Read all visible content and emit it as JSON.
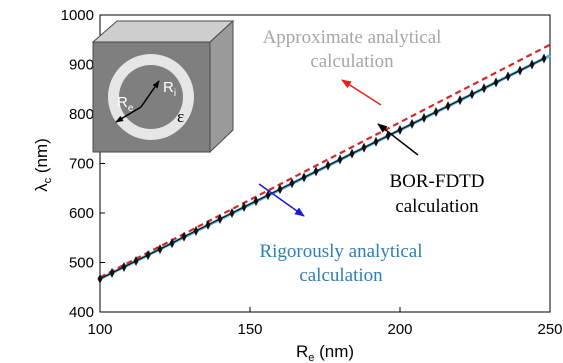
{
  "chart_data": {
    "type": "line",
    "xlabel": "R",
    "xlabel_sub": "e",
    "xlabel_unit": " (nm)",
    "ylabel": "λ",
    "ylabel_sub": "c",
    "ylabel_unit": " (nm)",
    "xlim": [
      100,
      250
    ],
    "ylim": [
      400,
      1000
    ],
    "xticks": [
      "100",
      "150",
      "200",
      "250"
    ],
    "yticks": [
      "400",
      "500",
      "600",
      "700",
      "800",
      "900",
      "1000"
    ],
    "series": [
      {
        "role": "approximate",
        "style": "dashed",
        "color": "#d62728",
        "x": [
          100,
          250
        ],
        "y": [
          470,
          940
        ]
      },
      {
        "role": "rigorous",
        "style": "solid",
        "color": "#4fb3d9",
        "x": [
          100,
          250
        ],
        "y": [
          467,
          918
        ]
      },
      {
        "role": "bor-fdtd",
        "style": "markers",
        "color": "#111111",
        "x": [
          100,
          104,
          108,
          112,
          116,
          120,
          124,
          128,
          132,
          136,
          140,
          144,
          148,
          152,
          156,
          160,
          164,
          168,
          172,
          176,
          180,
          184,
          188,
          192,
          196,
          200,
          204,
          208,
          212,
          216,
          220,
          224,
          228,
          232,
          236,
          240,
          244,
          248
        ],
        "y": [
          467,
          479,
          491,
          503,
          515,
          527,
          539,
          552,
          564,
          576,
          588,
          600,
          612,
          624,
          636,
          648,
          660,
          672,
          684,
          696,
          708,
          720,
          732,
          744,
          756,
          768,
          780,
          792,
          804,
          816,
          828,
          840,
          852,
          864,
          876,
          888,
          900,
          912
        ]
      }
    ],
    "annotations": {
      "approx_line1": "Approximate analytical",
      "approx_line2": "calculation",
      "approx_color": "#a6a6a6",
      "approx_arrow_color": "#e8201a",
      "fdtd_line1": "BOR-FDTD",
      "fdtd_line2": "calculation",
      "fdtd_color": "#000000",
      "fdtd_arrow_color": "#000000",
      "rig_line1": "Rigorously analytical",
      "rig_line2": "calculation",
      "rig_color": "#2e7fb8",
      "rig_arrow_color": "#1a1adb"
    },
    "inset": {
      "label_re": "R",
      "label_re_sub": "e",
      "label_ri": "R",
      "label_ri_sub": "i",
      "label_eps": "ε"
    },
    "grid": false
  }
}
